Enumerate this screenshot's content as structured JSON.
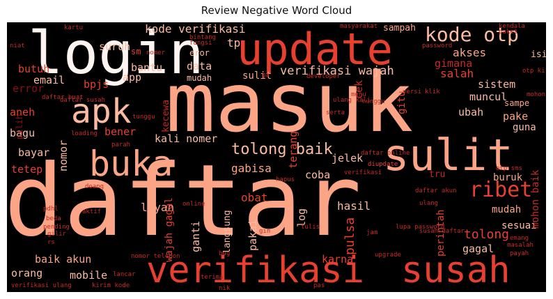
{
  "title": "Review Negative Word Cloud",
  "palette": {
    "background": "#000000",
    "salmon": "#fca486",
    "light_salmon": "#fcbba1",
    "red": "#e8402f",
    "mid_red": "#c62a24",
    "dark_red": "#8f0d13",
    "deep_red": "#67000d",
    "cream": "#fff5f0"
  },
  "words": [
    {
      "text": "daftar"
    },
    {
      "text": "masuk"
    },
    {
      "text": "login"
    },
    {
      "text": "update"
    },
    {
      "text": "verifikasi"
    },
    {
      "text": "susah"
    },
    {
      "text": "sulit"
    },
    {
      "text": "apk"
    },
    {
      "text": "buka"
    },
    {
      "text": "kode otp"
    },
    {
      "text": "ribet"
    },
    {
      "text": "tolong baik"
    },
    {
      "text": "kode verifikasi"
    },
    {
      "text": "verifikasi wajah"
    },
    {
      "text": "akses"
    },
    {
      "text": "gimana"
    },
    {
      "text": "salah"
    },
    {
      "text": "sistem"
    },
    {
      "text": "muncul"
    },
    {
      "text": "ubah"
    },
    {
      "text": "pake"
    },
    {
      "text": "guna"
    },
    {
      "text": "buruk"
    },
    {
      "text": "mudah"
    },
    {
      "text": "tolong"
    },
    {
      "text": "sesuai"
    },
    {
      "text": "gagal"
    },
    {
      "text": "hasil"
    },
    {
      "text": "pulsa"
    },
    {
      "text": "perintah"
    },
    {
      "text": "mohon baik"
    },
    {
      "text": "jelek"
    },
    {
      "text": "coba"
    },
    {
      "text": "gabisa"
    },
    {
      "text": "obat"
    },
    {
      "text": "layan"
    },
    {
      "text": "ganti"
    },
    {
      "text": "pakai"
    },
    {
      "text": "log"
    },
    {
      "text": "karna"
    },
    {
      "text": "mobile"
    },
    {
      "text": "orang"
    },
    {
      "text": "baik akun"
    },
    {
      "text": "tetep"
    },
    {
      "text": "bayar"
    },
    {
      "text": "bagu"
    },
    {
      "text": "aneh"
    },
    {
      "text": "error"
    },
    {
      "text": "email"
    },
    {
      "text": "butuh"
    },
    {
      "text": "bpjs"
    },
    {
      "text": "app"
    },
    {
      "text": "bantu"
    },
    {
      "text": "data"
    },
    {
      "text": "mudah"
    },
    {
      "text": "sulit"
    },
    {
      "text": "eror"
    },
    {
      "text": "tp"
    },
    {
      "text": "suruh"
    },
    {
      "text": "sampah"
    },
    {
      "text": "isi"
    },
    {
      "text": "cek"
    },
    {
      "text": "bener"
    },
    {
      "text": "kali nomer"
    },
    {
      "text": "nomor"
    },
    {
      "text": "terang"
    },
    {
      "text": "pilih"
    },
    {
      "text": "kecewa"
    },
    {
      "text": "langsung"
    },
    {
      "text": "wajah gagal"
    },
    {
      "text": "tru"
    },
    {
      "text": "sm"
    },
    {
      "text": "gitu"
    },
    {
      "text": "sampe"
    },
    {
      "text": "diupdate"
    },
    {
      "text": "daftar online"
    },
    {
      "text": "verifikasi"
    },
    {
      "text": "daftar akun"
    },
    {
      "text": "ulang"
    },
    {
      "text": "online"
    },
    {
      "text": "hapus"
    },
    {
      "text": "nunggu"
    },
    {
      "text": "password"
    },
    {
      "text": "kendala"
    },
    {
      "text": "masyarakat"
    },
    {
      "text": "bintang"
    },
    {
      "text": "fungsi"
    },
    {
      "text": "paket"
    },
    {
      "text": "otp kirim"
    },
    {
      "text": "mohon"
    },
    {
      "text": "daftar susah"
    },
    {
      "text": "versi"
    },
    {
      "text": "klik"
    },
    {
      "text": "developer"
    },
    {
      "text": "loading"
    },
    {
      "text": "doang"
    },
    {
      "text": "pdhl"
    },
    {
      "text": "beda"
    },
    {
      "text": "aktif"
    },
    {
      "text": "pending"
    },
    {
      "text": "gilir"
    },
    {
      "text": "rs"
    },
    {
      "text": "kirim kode"
    },
    {
      "text": "verifikasi ulang"
    },
    {
      "text": "nomor telepon"
    },
    {
      "text": "terima"
    },
    {
      "text": "nik"
    },
    {
      "text": "bug"
    },
    {
      "text": "jam"
    },
    {
      "text": "tulis"
    },
    {
      "text": "lupa password"
    },
    {
      "text": "susah daftar"
    },
    {
      "text": "emang"
    },
    {
      "text": "masalah"
    },
    {
      "text": "payah"
    },
    {
      "text": "upgrade"
    },
    {
      "text": "otp sms"
    },
    {
      "text": "ulang kali"
    },
    {
      "text": "tunggu"
    },
    {
      "text": "niat"
    },
    {
      "text": "kartu"
    },
    {
      "text": "nomer"
    },
    {
      "text": "lancar"
    },
    {
      "text": "menu"
    },
    {
      "text": "gin"
    },
    {
      "text": "daftar buat"
    },
    {
      "text": "parah"
    },
    {
      "text": "ga"
    },
    {
      "text": "pas"
    },
    {
      "text": "serta"
    }
  ]
}
